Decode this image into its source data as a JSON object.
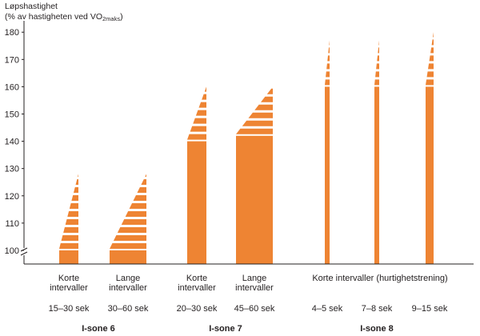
{
  "chart_data": {
    "type": "bar",
    "ylabel_line1": "Løpshastighet",
    "ylabel_line2_prefix": "(% av hastigheten ved VO",
    "ylabel_sub1": "2",
    "ylabel_sub2": "maks",
    "ylabel_line2_suffix": ")",
    "ylim": [
      95,
      183
    ],
    "yticks": [
      "100",
      "110",
      "120",
      "130",
      "140",
      "150",
      "160",
      "170",
      "180"
    ],
    "bars": [
      {
        "label_line1": "Korte",
        "label_line2": "intervaller",
        "duration": "15–30 sek",
        "zone": "I-sone 6",
        "solid_min": 95,
        "solid_max": 100,
        "range_max": 128,
        "shape": "narrow"
      },
      {
        "label_line1": "Lange",
        "label_line2": "intervaller",
        "duration": "30–60 sek",
        "zone": "I-sone 6",
        "solid_min": 95,
        "solid_max": 100,
        "range_max": 128,
        "shape": "wide"
      },
      {
        "label_line1": "Korte",
        "label_line2": "intervaller",
        "duration": "20–30 sek",
        "zone": "I-sone 7",
        "solid_min": 95,
        "solid_max": 140,
        "range_max": 160,
        "shape": "narrow"
      },
      {
        "label_line1": "Lange",
        "label_line2": "intervaller",
        "duration": "45–60 sek",
        "zone": "I-sone 7",
        "solid_min": 95,
        "solid_max": 142,
        "range_max": 160,
        "shape": "wide"
      },
      {
        "label_line1": "",
        "label_line2": "",
        "duration": "4–5 sek",
        "zone": "I-sone 8",
        "solid_min": 95,
        "solid_max": 160,
        "range_max": 177,
        "shape": "spike"
      },
      {
        "label_line1": "",
        "label_line2": "",
        "duration": "7–8 sek",
        "zone": "I-sone 8",
        "solid_min": 95,
        "solid_max": 160,
        "range_max": 177,
        "shape": "spike"
      },
      {
        "label_line1": "",
        "label_line2": "",
        "duration": "9–15 sek",
        "zone": "I-sone 8",
        "solid_min": 95,
        "solid_max": 160,
        "range_max": 180,
        "shape": "spike-wide"
      }
    ],
    "group_label": "Korte intervaller (hurtighetstrening)",
    "zones": [
      "I-sone 6",
      "I-sone 7",
      "I-sone 8"
    ],
    "colors": {
      "bar": "#ee8433",
      "axis": "#231f20"
    }
  }
}
